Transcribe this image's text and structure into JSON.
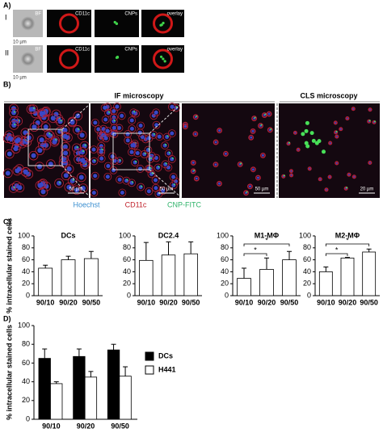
{
  "panel_labels": [
    "A)",
    "B)",
    "C)",
    "D)"
  ],
  "panel_a": {
    "rows": [
      "I",
      "II"
    ],
    "channels": [
      "BF",
      "CD11c",
      "CNPs",
      "overlay"
    ],
    "scale": "10 µm"
  },
  "panel_b": {
    "if_title": "IF microscopy",
    "cls_title": "CLS microscopy",
    "scales": [
      "50 µm",
      "50 µm",
      "50 µm",
      "20 µm"
    ],
    "legend": [
      "Hoechst",
      "CD11c",
      "CNP-FITC"
    ]
  },
  "chart_data": [
    {
      "type": "bar",
      "title": "DCs",
      "y_label": "% intracellular stained cells",
      "categories": [
        "90/10",
        "90/20",
        "90/50"
      ],
      "values": [
        46,
        60,
        62
      ],
      "errors": [
        5,
        6,
        12
      ],
      "color": "#ffffff",
      "ylim": [
        0,
        100
      ],
      "yticks": [
        0,
        20,
        40,
        60,
        80,
        100
      ]
    },
    {
      "type": "bar",
      "title": "DC2.4",
      "categories": [
        "90/10",
        "90/20",
        "90/50"
      ],
      "values": [
        59,
        68,
        70
      ],
      "errors": [
        30,
        22,
        20
      ],
      "color": "#ffffff",
      "ylim": [
        0,
        100
      ],
      "yticks": [
        0,
        20,
        40,
        60,
        80,
        100
      ]
    },
    {
      "type": "bar",
      "title": "M1-MΦ",
      "categories": [
        "90/10",
        "90/20",
        "90/50"
      ],
      "values": [
        29,
        44,
        60
      ],
      "errors": [
        17,
        19,
        14
      ],
      "color": "#ffffff",
      "ylim": [
        0,
        100
      ],
      "yticks": [
        0,
        20,
        40,
        60,
        80,
        100
      ],
      "annotations": [
        "*",
        "*"
      ]
    },
    {
      "type": "bar",
      "title": "M2-MΦ",
      "categories": [
        "90/10",
        "90/20",
        "90/50"
      ],
      "values": [
        40,
        63,
        73
      ],
      "errors": [
        8,
        1,
        5
      ],
      "color": "#ffffff",
      "ylim": [
        0,
        100
      ],
      "yticks": [
        0,
        20,
        40,
        60,
        80,
        100
      ],
      "annotations": [
        "*",
        "*"
      ]
    },
    {
      "type": "grouped_bar",
      "y_label": "% intracellular stained cells",
      "categories": [
        "90/10",
        "90/20",
        "90/50"
      ],
      "ylim": [
        0,
        100
      ],
      "yticks": [
        0,
        20,
        40,
        60,
        80,
        100
      ],
      "legend": "right",
      "series": [
        {
          "name": "DCs",
          "color": "#000000",
          "values": [
            65,
            67,
            74
          ],
          "errors": [
            10,
            8,
            6
          ]
        },
        {
          "name": "H441",
          "color": "#ffffff",
          "values": [
            38,
            45,
            46
          ],
          "errors": [
            2,
            6,
            10
          ]
        }
      ]
    }
  ]
}
